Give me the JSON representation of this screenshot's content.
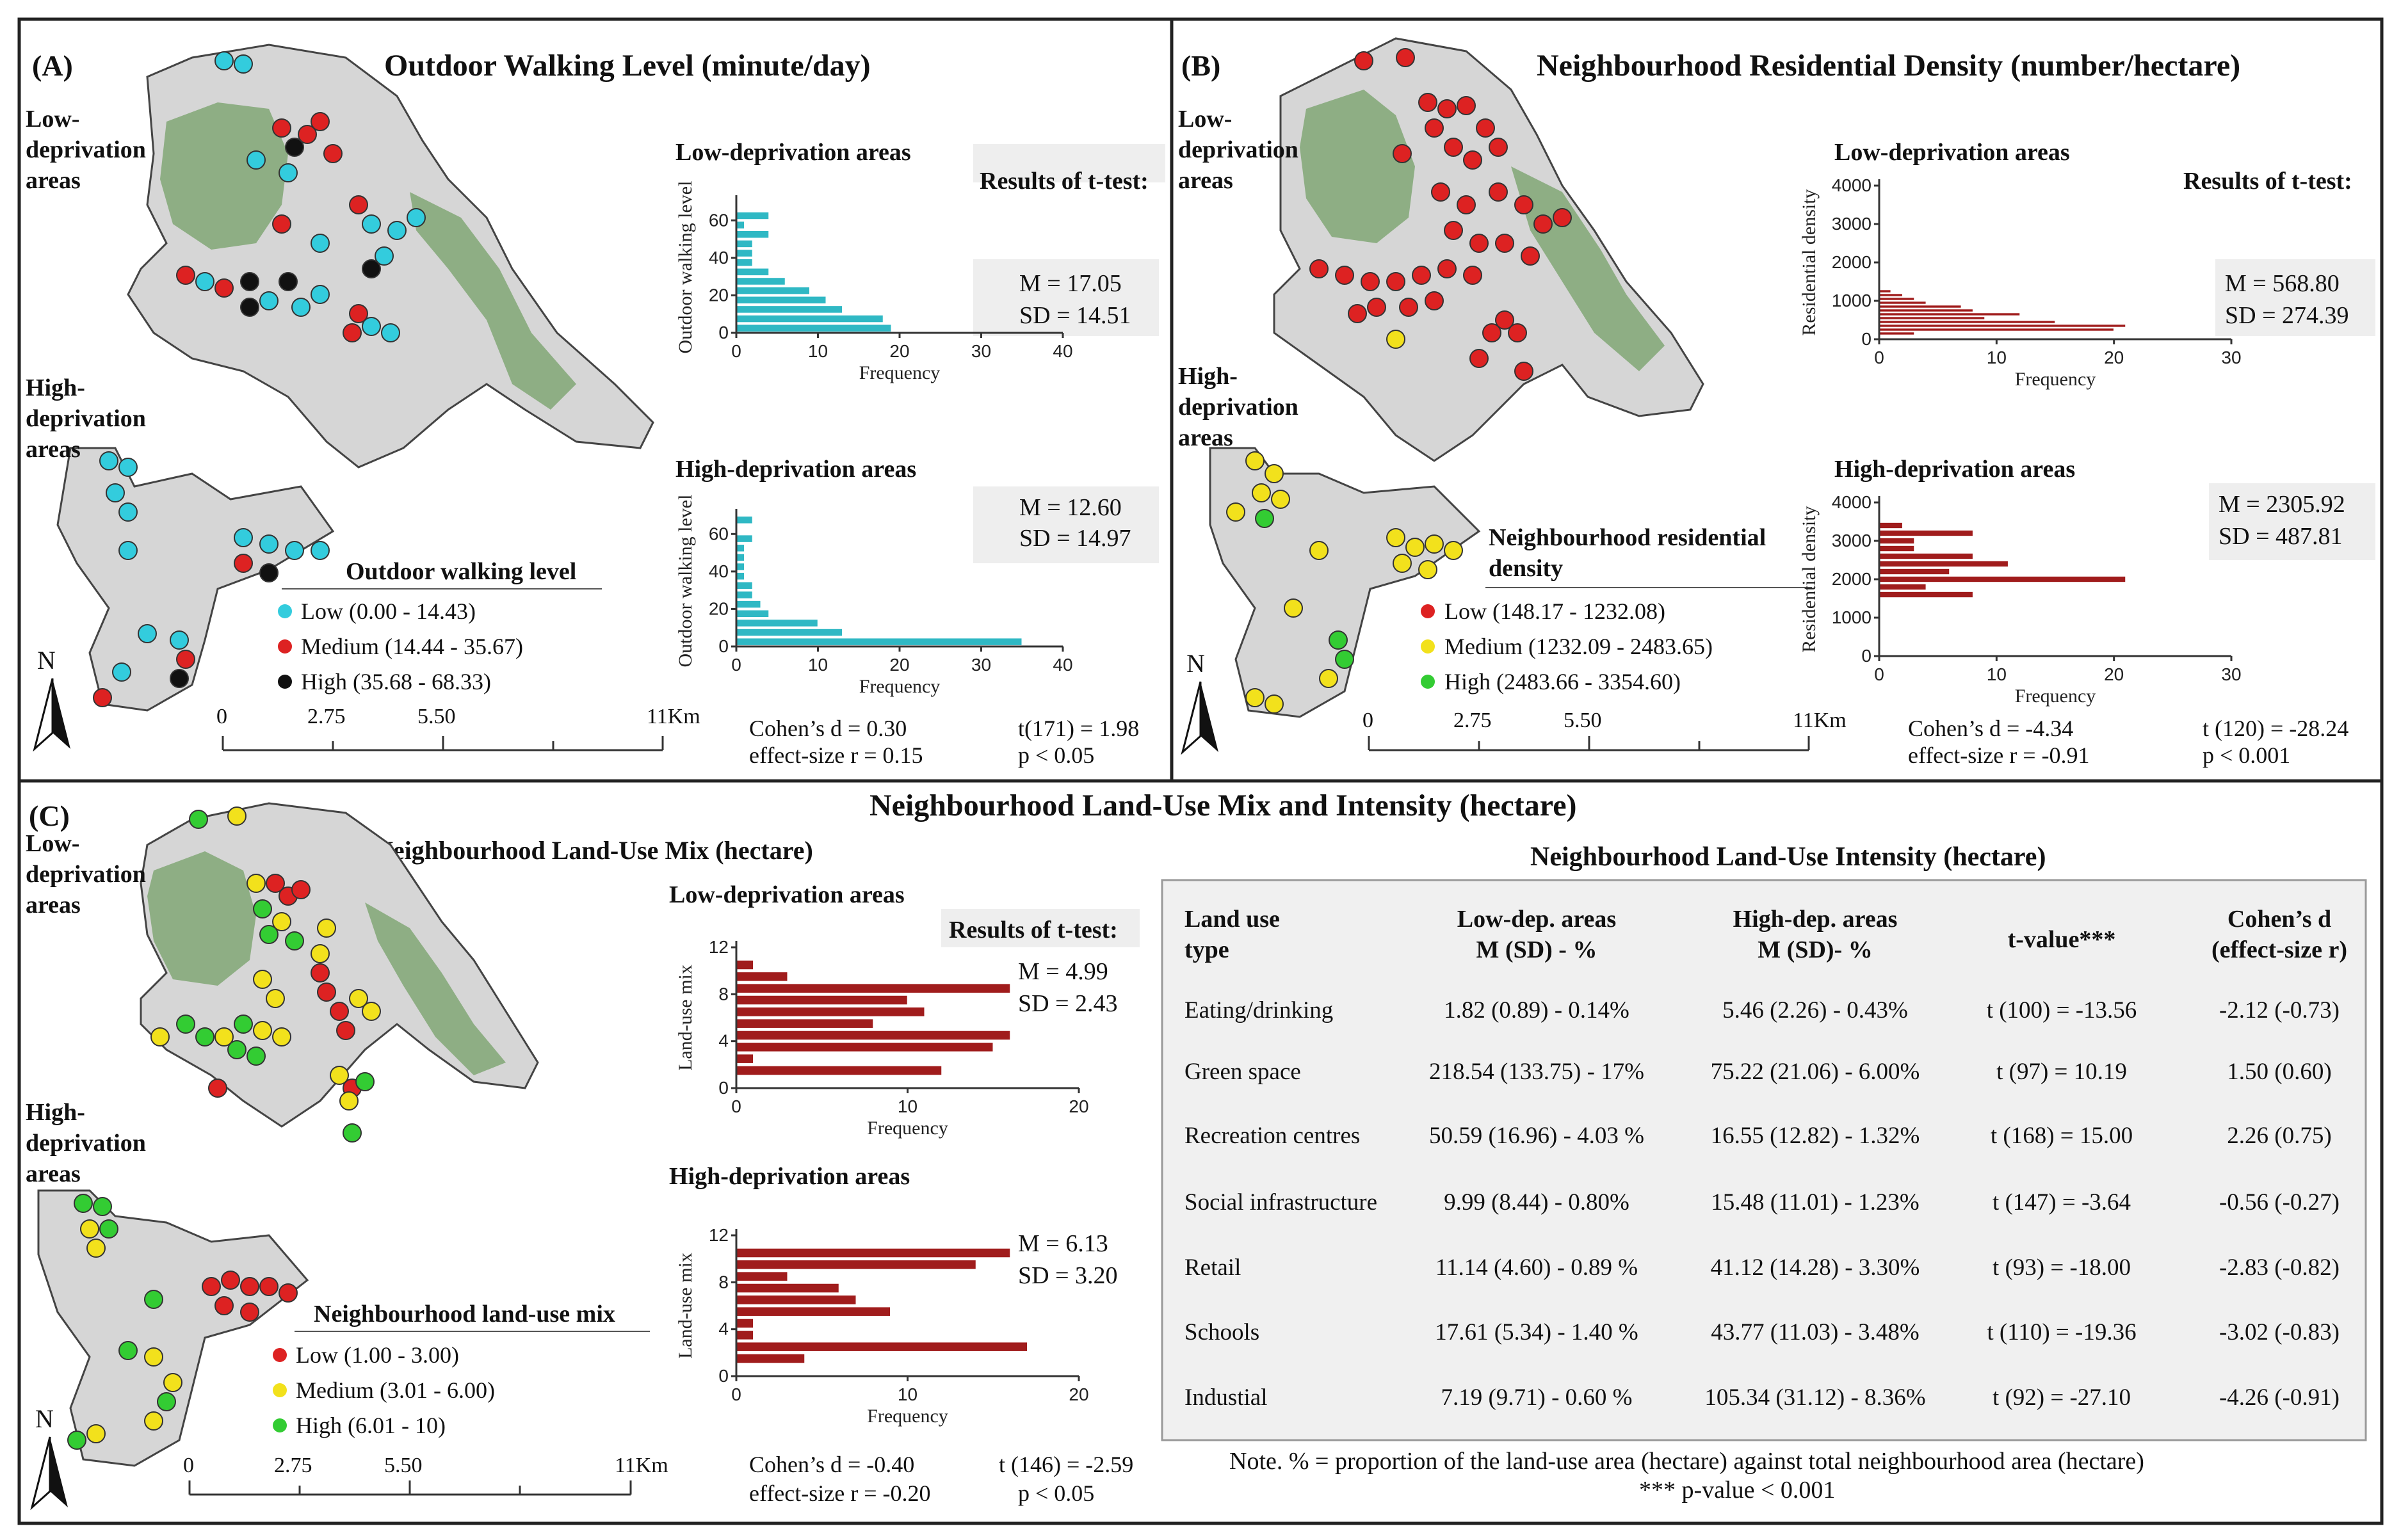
{
  "panelA": {
    "tag": "(A)",
    "title": "Outdoor Walking Level (minute/day)",
    "low_label": [
      "Low-",
      "deprivation",
      "areas"
    ],
    "high_label": [
      "High-",
      "deprivation",
      "areas"
    ],
    "legend_title": "Outdoor walking level",
    "legend": [
      {
        "label": "Low (0.00 - 14.43)",
        "color": "#33ccdd"
      },
      {
        "label": "Medium (14.44 - 35.67)",
        "color": "#dd2222"
      },
      {
        "label": "High (35.68 - 68.33)",
        "color": "#111111"
      }
    ],
    "scale_labels": [
      "0",
      "2.75",
      "5.50",
      "11Km"
    ],
    "north": "N",
    "results_title": "Results of t-test:",
    "low_stats": [
      "M = 17.05",
      "SD = 14.51"
    ],
    "high_stats": [
      "M = 12.60",
      "SD = 14.97"
    ],
    "effect": [
      "Cohen’s d = 0.30",
      "effect-size r = 0.15"
    ],
    "ttest": [
      "t(171) = 1.98",
      "p < 0.05"
    ]
  },
  "panelB": {
    "tag": "(B)",
    "title": "Neighbourhood Residential Density (number/hectare)",
    "low_label": [
      "Low-",
      "deprivation",
      "areas"
    ],
    "high_label": [
      "High-",
      "deprivation",
      "areas"
    ],
    "legend_title": [
      "Neighbourhood residential",
      "density"
    ],
    "legend": [
      {
        "label": "Low (148.17 - 1232.08)",
        "color": "#dd2222"
      },
      {
        "label": "Medium (1232.09 - 2483.65)",
        "color": "#f2e11c"
      },
      {
        "label": "High (2483.66 - 3354.60)",
        "color": "#33cc33"
      }
    ],
    "scale_labels": [
      "0",
      "2.75",
      "5.50",
      "11Km"
    ],
    "north": "N",
    "results_title": "Results of t-test:",
    "low_stats": [
      "M = 568.80",
      "SD = 274.39"
    ],
    "high_stats": [
      "M = 2305.92",
      "SD = 487.81"
    ],
    "effect": [
      "Cohen’s d = -4.34",
      "effect-size r = -0.91"
    ],
    "ttest": [
      "t (120) = -28.24",
      "p < 0.001"
    ]
  },
  "panelC": {
    "tag": "(C)",
    "title": "Neighbourhood Land-Use Mix and Intensity (hectare)",
    "map_title": "Neighbourhood Land-Use Mix (hectare)",
    "low_label": [
      "Low-",
      "deprivation",
      "areas"
    ],
    "high_label": [
      "High-",
      "deprivation",
      "areas"
    ],
    "legend_title": "Neighbourhood land-use mix",
    "legend": [
      {
        "label": "Low (1.00 - 3.00)",
        "color": "#dd2222"
      },
      {
        "label": "Medium (3.01 - 6.00)",
        "color": "#f2e11c"
      },
      {
        "label": "High (6.01 - 10)",
        "color": "#33cc33"
      }
    ],
    "scale_labels": [
      "0",
      "2.75",
      "5.50",
      "11Km"
    ],
    "north": "N",
    "results_title": "Results of t-test:",
    "low_stats": [
      "M = 4.99",
      "SD = 2.43"
    ],
    "high_stats": [
      "M = 6.13",
      "SD = 3.20"
    ],
    "effect": [
      "Cohen’s d = -0.40",
      "effect-size r = -0.20"
    ],
    "ttest": [
      "t (146) = -2.59",
      "p < 0.05"
    ],
    "table_title": "Neighbourhood Land-Use Intensity (hectare)",
    "table_headers": [
      [
        "Land use",
        "type"
      ],
      [
        "Low-dep. areas",
        "M (SD) - %"
      ],
      [
        "High-dep. areas",
        "M (SD)- %"
      ],
      [
        "t-value***"
      ],
      [
        "Cohen’s d",
        "(effect-size r)"
      ]
    ],
    "table_rows": [
      [
        "Eating/drinking",
        "1.82 (0.89) - 0.14%",
        "5.46 (2.26) - 0.43%",
        "t (100) = -13.56",
        "-2.12 (-0.73)"
      ],
      [
        "Green space",
        "218.54 (133.75) - 17%",
        "75.22 (21.06) - 6.00%",
        "t (97) = 10.19",
        "1.50 (0.60)"
      ],
      [
        "Recreation centres",
        "50.59 (16.96) - 4.03 %",
        "16.55 (12.82) - 1.32%",
        "t (168) = 15.00",
        "2.26 (0.75)"
      ],
      [
        "Social infrastructure",
        "9.99 (8.44) - 0.80%",
        "15.48 (11.01) - 1.23%",
        "t (147) = -3.64",
        "-0.56 (-0.27)"
      ],
      [
        "Retail",
        "11.14 (4.60) - 0.89 %",
        "41.12 (14.28) - 3.30%",
        "t (93) = -18.00",
        "-2.83 (-0.82)"
      ],
      [
        "Schools",
        "17.61 (5.34) - 1.40 %",
        "43.77 (11.03) - 3.48%",
        "t (110) = -19.36",
        "-3.02 (-0.83)"
      ],
      [
        "Industial",
        "7.19 (9.71) - 0.60 %",
        "105.34 (31.12) - 8.36%",
        "t (92) = -27.10",
        "-4.26 (-0.91)"
      ]
    ],
    "note": "Note. % = proportion of the land-use area (hectare) against total neighbourhood area (hectare)",
    "pnote": "*** p-value < 0.001"
  },
  "chart_data": [
    {
      "type": "bar",
      "orientation": "horizontal",
      "title": "Low-deprivation areas",
      "xlabel": "Frequency",
      "ylabel": "Outdoor walking level",
      "color": "#2fb8c4",
      "xlim": [
        0,
        40
      ],
      "ylim": [
        0,
        70
      ],
      "xticks": [
        0,
        10,
        20,
        30,
        40
      ],
      "yticks": [
        0,
        20,
        40,
        60
      ],
      "bins": [
        0,
        5,
        10,
        15,
        20,
        25,
        30,
        35,
        40,
        45,
        50,
        55,
        60
      ],
      "values": [
        19,
        18,
        13,
        11,
        9,
        6,
        4,
        2,
        2,
        2,
        4,
        1,
        4
      ]
    },
    {
      "type": "bar",
      "orientation": "horizontal",
      "title": "High-deprivation areas",
      "xlabel": "Frequency",
      "ylabel": "Outdoor walking level",
      "color": "#2fb8c4",
      "xlim": [
        0,
        40
      ],
      "ylim": [
        0,
        70
      ],
      "xticks": [
        0,
        10,
        20,
        30,
        40
      ],
      "yticks": [
        0,
        20,
        40,
        60
      ],
      "bins": [
        0,
        5,
        10,
        15,
        20,
        25,
        30,
        35,
        40,
        45,
        50,
        55,
        60,
        65
      ],
      "values": [
        35,
        13,
        10,
        4,
        3,
        2,
        2,
        1,
        1,
        1,
        1,
        2,
        0,
        2
      ]
    },
    {
      "type": "bar",
      "orientation": "horizontal",
      "title": "Low-deprivation areas",
      "xlabel": "Frequency",
      "ylabel": "Residential density",
      "color": "#a01c1c",
      "xlim": [
        0,
        30
      ],
      "ylim": [
        0,
        4000
      ],
      "xticks": [
        0,
        10,
        20,
        30
      ],
      "yticks": [
        0,
        1000,
        2000,
        3000,
        4000
      ],
      "bins": [
        100,
        200,
        300,
        400,
        500,
        600,
        700,
        800,
        900,
        1000,
        1100,
        1200
      ],
      "values": [
        3,
        20,
        21,
        15,
        9,
        12,
        8,
        7,
        4,
        3,
        2,
        1
      ]
    },
    {
      "type": "bar",
      "orientation": "horizontal",
      "title": "High-deprivation areas",
      "xlabel": "Frequency",
      "ylabel": "Residential density",
      "color": "#a01c1c",
      "xlim": [
        0,
        30
      ],
      "ylim": [
        0,
        4000
      ],
      "xticks": [
        0,
        10,
        20,
        30
      ],
      "yticks": [
        0,
        1000,
        2000,
        3000,
        4000
      ],
      "bins": [
        1500,
        1700,
        1900,
        2100,
        2300,
        2500,
        2700,
        2900,
        3100,
        3300
      ],
      "values": [
        8,
        4,
        21,
        6,
        11,
        8,
        3,
        3,
        8,
        2
      ]
    },
    {
      "type": "bar",
      "orientation": "horizontal",
      "title": "Low-deprivation areas",
      "xlabel": "Frequency",
      "ylabel": "Land-use mix",
      "color": "#a01c1c",
      "xlim": [
        0,
        20
      ],
      "ylim": [
        0,
        12
      ],
      "xticks": [
        0,
        10,
        20
      ],
      "yticks": [
        0,
        4,
        8,
        12
      ],
      "bins": [
        1,
        2,
        3,
        4,
        5,
        6,
        7,
        8,
        9,
        10
      ],
      "values": [
        12,
        1,
        15,
        16,
        8,
        11,
        10,
        16,
        3,
        1
      ]
    },
    {
      "type": "bar",
      "orientation": "horizontal",
      "title": "High-deprivation areas",
      "xlabel": "Frequency",
      "ylabel": "Land-use mix",
      "color": "#a01c1c",
      "xlim": [
        0,
        20
      ],
      "ylim": [
        0,
        12
      ],
      "xticks": [
        0,
        10,
        20
      ],
      "yticks": [
        0,
        4,
        8,
        12
      ],
      "bins": [
        1,
        2,
        3,
        4,
        5,
        6,
        7,
        8,
        9,
        10
      ],
      "values": [
        4,
        17,
        1,
        1,
        9,
        7,
        6,
        3,
        14,
        16
      ]
    }
  ]
}
